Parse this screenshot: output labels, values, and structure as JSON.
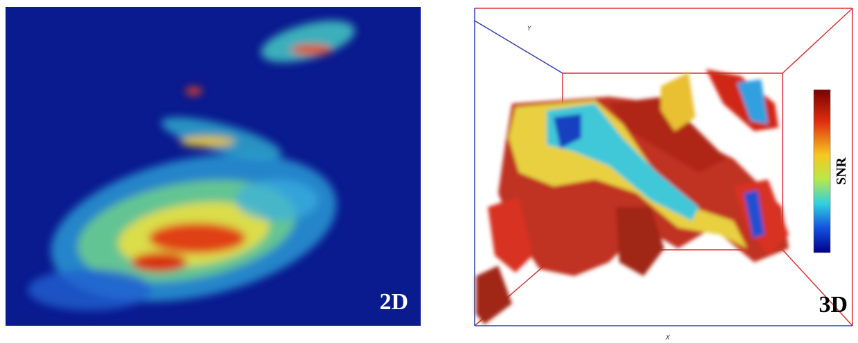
{
  "panels": [
    {
      "label": "2D"
    },
    {
      "label": "3D",
      "colorbar_label": "SNR",
      "axis_labels": {
        "y": "Y",
        "x": "X"
      }
    }
  ]
}
